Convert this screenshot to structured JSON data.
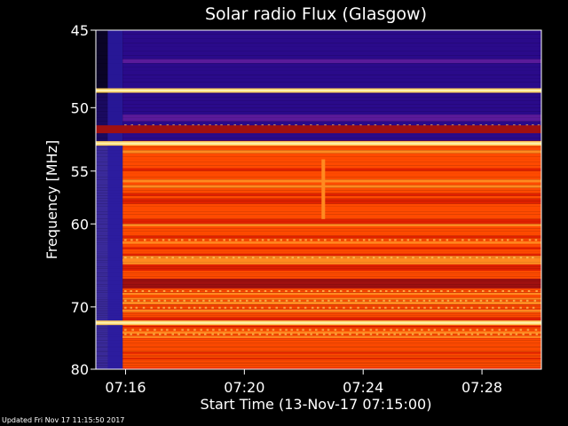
{
  "chart_data": {
    "type": "heatmap",
    "title": "Solar radio Flux (Glasgow)",
    "xlabel": "Start Time (13-Nov-17 07:15:00)",
    "ylabel": "Frequency [MHz]",
    "x_ticks": [
      "07:16",
      "07:20",
      "07:24",
      "07:28"
    ],
    "x_tick_minutes": [
      1,
      5,
      9,
      13
    ],
    "xlim_minutes": [
      0,
      15
    ],
    "y_ticks": [
      45,
      50,
      55,
      60,
      70,
      80
    ],
    "ylim": [
      45,
      80
    ],
    "y_scale": "reciprocal",
    "colormap": [
      "#2a0a8a",
      "#5a1a9a",
      "#a01010",
      "#e02000",
      "#ff4a00",
      "#ff8a20",
      "#ffd060",
      "#fff0b0"
    ],
    "strong_lines_mhz": [
      48.8,
      52.7,
      72.3
    ],
    "moderate_lines_mhz": [
      51.5,
      62.0,
      64.0,
      68.2,
      69.5,
      70.5,
      73.8,
      74.5
    ],
    "quiet_band_mhz": [
      45,
      52.5
    ],
    "event_minutes": [
      0.4,
      0.9
    ]
  },
  "footer": "Updated Fri Nov 17 11:15:50 2017"
}
